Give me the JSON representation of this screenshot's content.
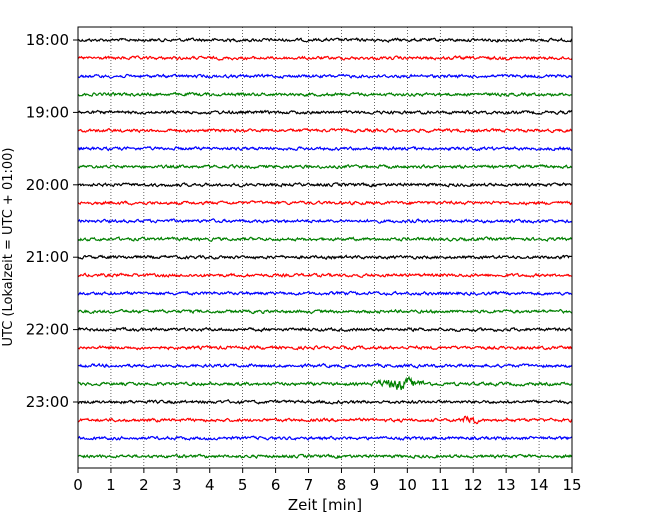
{
  "chart_data": {
    "type": "line",
    "title": "",
    "xlabel": "Zeit  [min]",
    "ylabel": "UTC (Lokalzeit = UTC + 01:00)",
    "xlim": [
      0,
      15
    ],
    "x_ticks": [
      "0",
      "1",
      "2",
      "3",
      "4",
      "5",
      "6",
      "7",
      "8",
      "9",
      "10",
      "11",
      "12",
      "13",
      "14",
      "15"
    ],
    "y_tick_labels": [
      "18:00",
      "19:00",
      "20:00",
      "21:00",
      "22:00",
      "23:00"
    ],
    "grid": "vertical dotted lines at each minute",
    "trace_colors": [
      "#000000",
      "#ff0000",
      "#0000ff",
      "#008000"
    ],
    "traces": [
      {
        "start": "18:00",
        "color": "#000000"
      },
      {
        "start": "18:15",
        "color": "#ff0000"
      },
      {
        "start": "18:30",
        "color": "#0000ff"
      },
      {
        "start": "18:45",
        "color": "#008000"
      },
      {
        "start": "19:00",
        "color": "#000000"
      },
      {
        "start": "19:15",
        "color": "#ff0000"
      },
      {
        "start": "19:30",
        "color": "#0000ff"
      },
      {
        "start": "19:45",
        "color": "#008000"
      },
      {
        "start": "20:00",
        "color": "#000000"
      },
      {
        "start": "20:15",
        "color": "#ff0000"
      },
      {
        "start": "20:30",
        "color": "#0000ff"
      },
      {
        "start": "20:45",
        "color": "#008000"
      },
      {
        "start": "21:00",
        "color": "#000000"
      },
      {
        "start": "21:15",
        "color": "#ff0000"
      },
      {
        "start": "21:30",
        "color": "#0000ff"
      },
      {
        "start": "21:45",
        "color": "#008000"
      },
      {
        "start": "22:00",
        "color": "#000000"
      },
      {
        "start": "22:15",
        "color": "#ff0000"
      },
      {
        "start": "22:30",
        "color": "#0000ff"
      },
      {
        "start": "22:45",
        "color": "#008000"
      },
      {
        "start": "23:00",
        "color": "#000000"
      },
      {
        "start": "23:15",
        "color": "#ff0000"
      },
      {
        "start": "23:30",
        "color": "#0000ff"
      },
      {
        "start": "23:45",
        "color": "#008000"
      }
    ],
    "events": [
      {
        "trace": "22:45",
        "x_start": 8.8,
        "x_end": 10.8,
        "amplitude": "larger oscillation burst"
      },
      {
        "trace": "23:15",
        "x_start": 11.6,
        "x_end": 12.2,
        "amplitude": "small spike"
      }
    ]
  }
}
